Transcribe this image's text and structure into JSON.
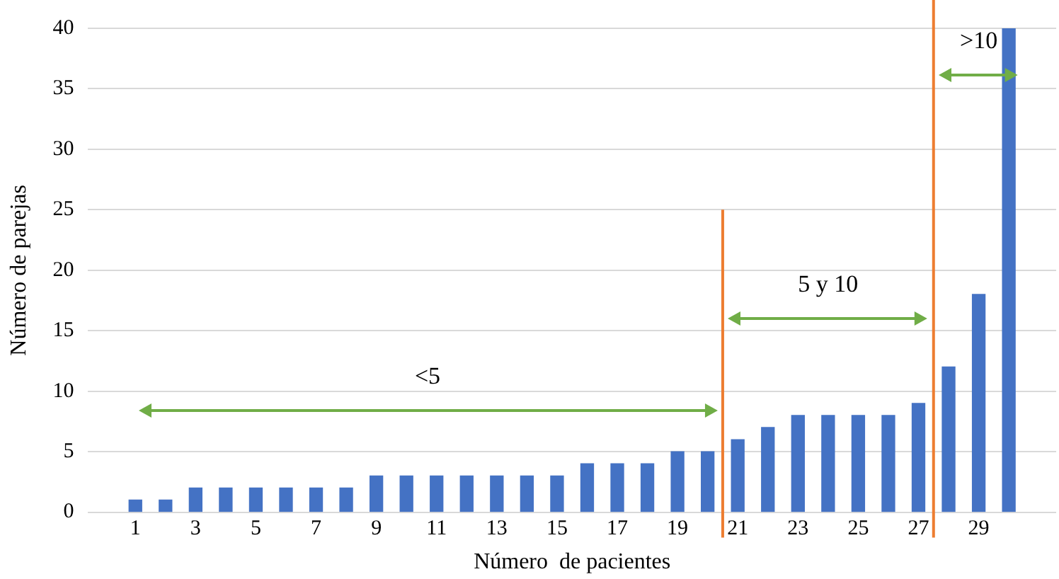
{
  "chart_data": {
    "type": "bar",
    "xlabel": "Número  de pacientes",
    "ylabel": "Número de parejas",
    "x": [
      1,
      2,
      3,
      4,
      5,
      6,
      7,
      8,
      9,
      10,
      11,
      12,
      13,
      14,
      15,
      16,
      17,
      18,
      19,
      20,
      21,
      22,
      23,
      24,
      25,
      26,
      27,
      28,
      29,
      30
    ],
    "values": [
      1,
      1,
      2,
      2,
      2,
      2,
      2,
      2,
      3,
      3,
      3,
      3,
      3,
      3,
      3,
      4,
      4,
      4,
      5,
      5,
      6,
      7,
      8,
      8,
      8,
      8,
      9,
      12,
      18,
      40
    ],
    "color": "#4472c4",
    "xlim": [
      0.5,
      30.5
    ],
    "xticks": [
      1,
      3,
      5,
      7,
      9,
      11,
      13,
      15,
      17,
      19,
      21,
      23,
      25,
      27,
      29
    ],
    "ylim": [
      0,
      40
    ],
    "yticks": [
      0,
      5,
      10,
      15,
      20,
      25,
      30,
      35,
      40
    ],
    "grid": "y",
    "legend": false,
    "ref_lines": [
      {
        "axis": "x",
        "value": 20.5,
        "color": "#ed7d31"
      },
      {
        "axis": "x",
        "value": 27.5,
        "color": "#ed7d31"
      }
    ],
    "annotations": [
      "<5",
      "5 y 10",
      ">10"
    ]
  }
}
